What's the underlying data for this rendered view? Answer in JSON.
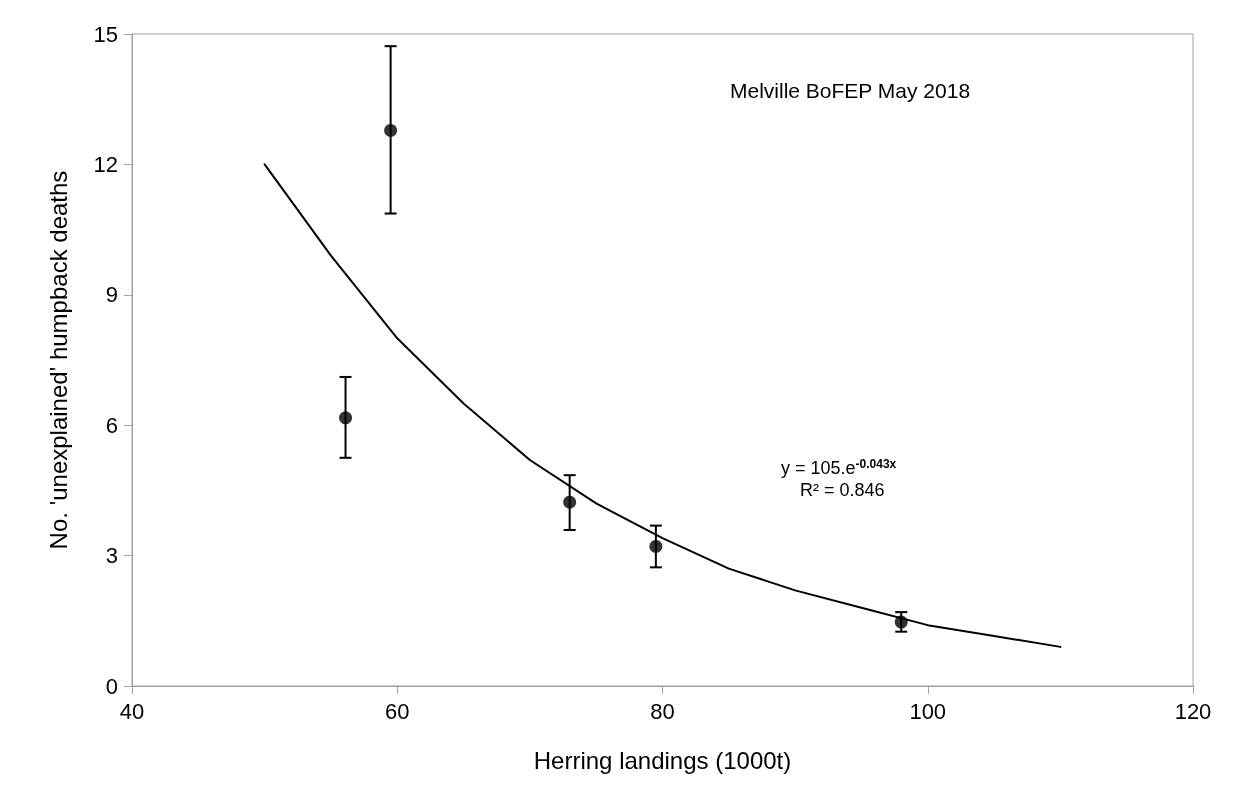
{
  "chart_data": {
    "type": "scatter",
    "xlabel": "Herring landings (1000t)",
    "ylabel": "No. 'unexplained' humpback deaths",
    "annotations": [
      "Melville BoFEP May 2018",
      "y = 105.e$^{-0.043x}$",
      "R² = 0.846"
    ],
    "series": [
      {
        "color": "#000000",
        "marker": "circle",
        "x": [
          56.1,
          59.5,
          73.0,
          79.5,
          98.0
        ],
        "values": [
          6.17,
          12.78,
          4.23,
          3.21,
          1.47
        ],
        "errors": [
          [
            5.25,
            7.11
          ],
          [
            10.87,
            14.72
          ],
          [
            3.59,
            4.85
          ],
          [
            2.73,
            3.69
          ],
          [
            1.25,
            1.7
          ]
        ]
      },
      {
        "type": "line",
        "color": "#000000",
        "marker": "none",
        "line_style": "solid",
        "x": [
          50,
          55,
          60,
          65,
          70,
          75,
          80,
          85,
          90,
          95,
          100,
          105,
          110
        ],
        "values": [
          12.0,
          9.9,
          8.0,
          6.5,
          5.2,
          4.2,
          3.4,
          2.7,
          2.2,
          1.8,
          1.4,
          1.15,
          0.9
        ]
      }
    ],
    "xlim": [
      40,
      120
    ],
    "xticks": [
      40,
      60,
      80,
      100,
      120
    ],
    "ylim": [
      0,
      15
    ],
    "yticks": [
      0,
      3,
      6,
      9,
      12,
      15
    ],
    "grid": false
  }
}
